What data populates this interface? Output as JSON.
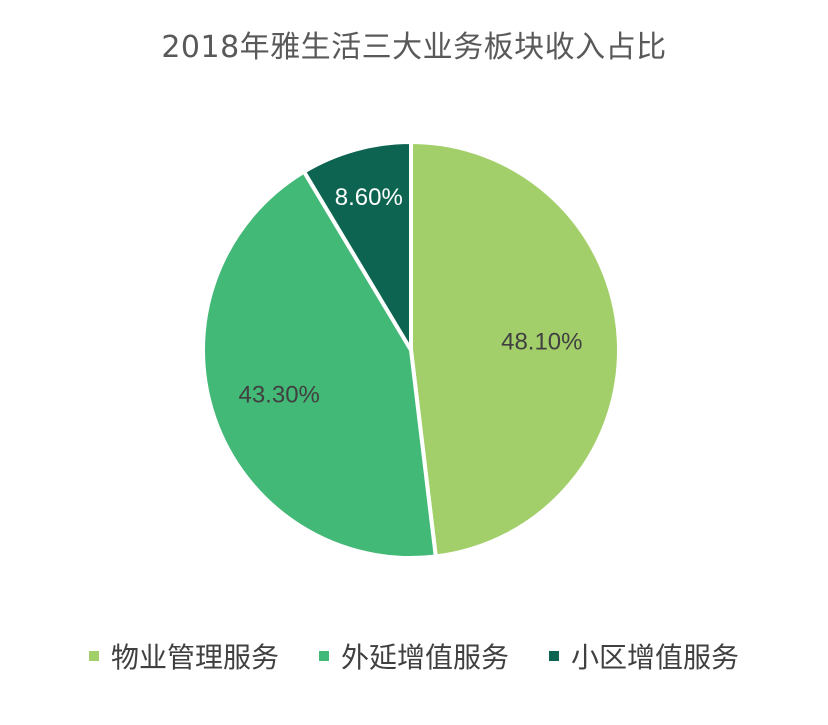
{
  "chart_data": {
    "type": "pie",
    "title": "2018年雅生活三大业务板块收入占比",
    "slices": [
      {
        "label": "物业管理服务",
        "value": 48.1,
        "value_label": "48.10%",
        "color": "#a3cf6b",
        "label_color": "#404040"
      },
      {
        "label": "外延增值服务",
        "value": 43.3,
        "value_label": "43.30%",
        "color": "#43b978",
        "label_color": "#404040"
      },
      {
        "label": "小区增值服务",
        "value": 8.6,
        "value_label": "8.60%",
        "color": "#0d6551",
        "label_color": "#ffffff"
      }
    ],
    "start_angle": "12 o'clock",
    "direction": "clockwise",
    "legend_position": "bottom"
  }
}
